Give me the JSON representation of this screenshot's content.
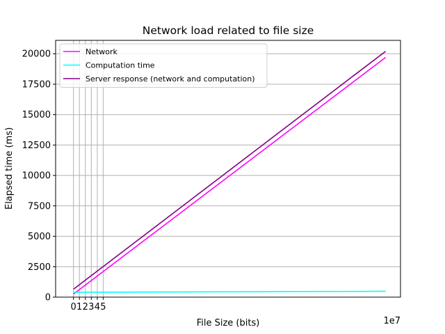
{
  "chart_data": {
    "type": "line",
    "title": "Network load related to file size",
    "xlabel": "File Size (bits)",
    "ylabel": "Elapsed time (ms)",
    "x_offset_label": "1e7",
    "xlim": [
      -3,
      55
    ],
    "ylim": [
      0,
      21100
    ],
    "x_ticks": [
      0,
      1,
      2,
      3,
      4,
      5
    ],
    "y_ticks": [
      0,
      2500,
      5000,
      7500,
      10000,
      12500,
      15000,
      17500,
      20000
    ],
    "grid": true,
    "legend_position": "upper-left",
    "x": [
      0.0,
      52.5
    ],
    "series": [
      {
        "name": "Network",
        "color": "#ff00ff",
        "values": [
          250,
          19700
        ]
      },
      {
        "name": "Computation time",
        "color": "#00ffff",
        "values": [
          400,
          480
        ]
      },
      {
        "name": "Server response (network and computation)",
        "color": "#800080",
        "values": [
          650,
          20200
        ]
      }
    ]
  }
}
